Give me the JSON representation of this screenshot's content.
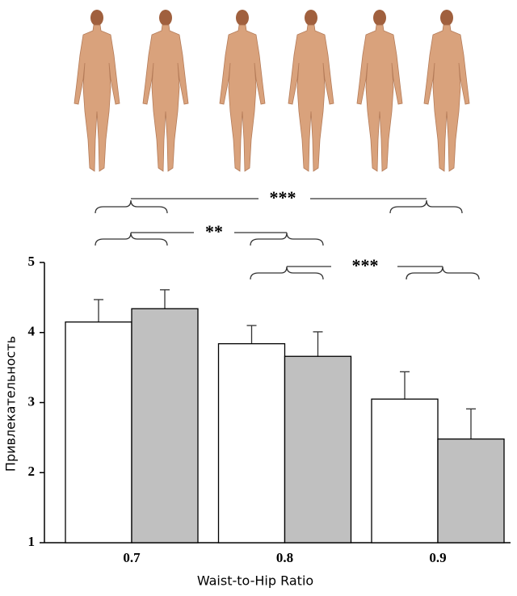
{
  "chart_data": {
    "type": "bar",
    "categories": [
      "0.7",
      "0.8",
      "0.9"
    ],
    "series": [
      {
        "color": "#ffffff",
        "values": [
          4.15,
          3.84,
          3.05
        ],
        "errors": [
          0.32,
          0.26,
          0.39
        ]
      },
      {
        "color": "#c0c0c0",
        "values": [
          4.34,
          3.66,
          2.48
        ],
        "errors": [
          0.27,
          0.35,
          0.43
        ]
      }
    ],
    "ylim": [
      1,
      5
    ],
    "yticks": [
      1,
      2,
      3,
      4,
      5
    ],
    "xlabel": "Waist-to-Hip Ratio",
    "ylabel": "Привлекательность",
    "annotations": [
      "***",
      "**",
      "***"
    ]
  }
}
